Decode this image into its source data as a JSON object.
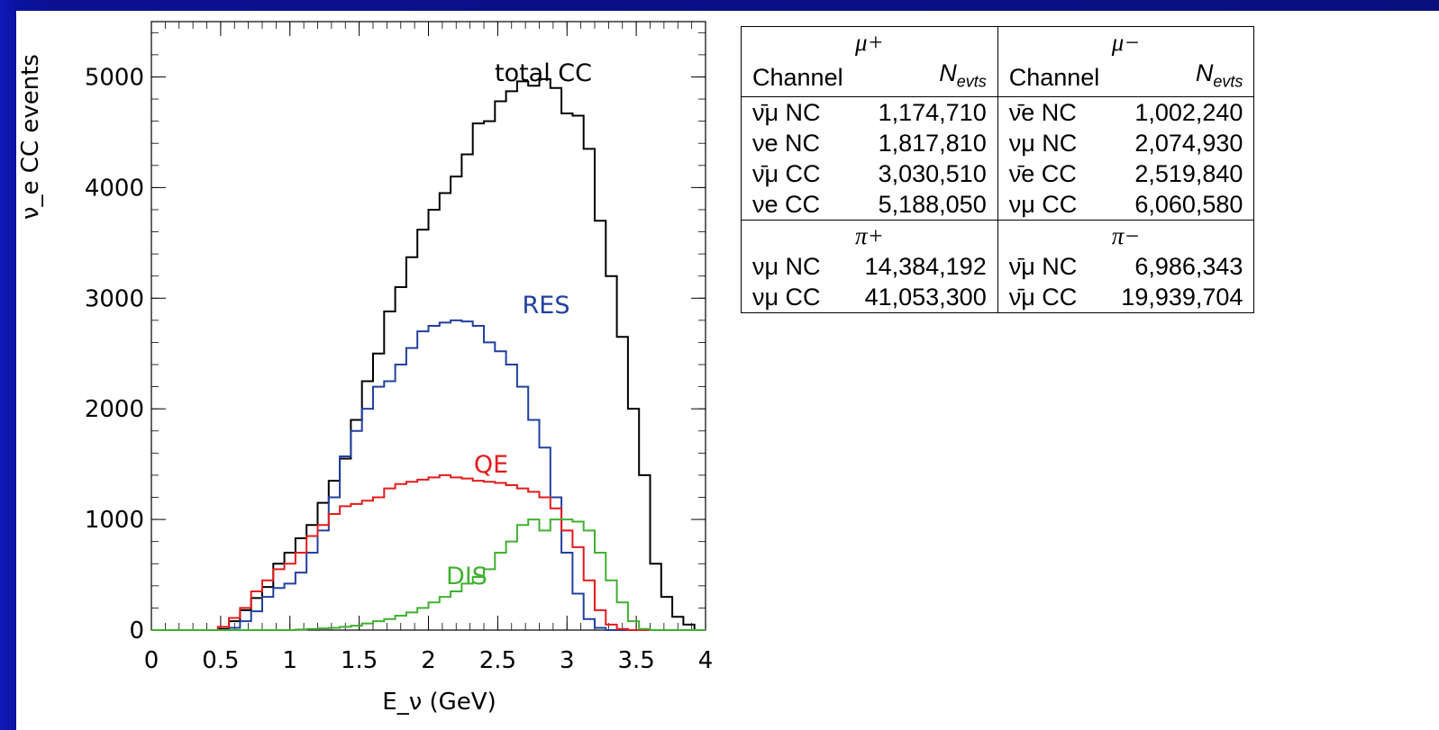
{
  "chart_data": {
    "type": "histogram",
    "xlabel": "E_ν (GeV)",
    "ylabel": "ν_e CC events",
    "xlim": [
      0,
      4
    ],
    "ylim": [
      0,
      5500
    ],
    "x_ticks": [
      "0",
      "0.5",
      "1",
      "1.5",
      "2",
      "2.5",
      "3",
      "3.5",
      "4"
    ],
    "y_ticks": [
      "0",
      "1000",
      "2000",
      "3000",
      "4000",
      "5000"
    ],
    "bin_width": 0.08,
    "series": [
      {
        "name": "total CC",
        "color": "#000000",
        "values": [
          0,
          0,
          0,
          0,
          0,
          0,
          10,
          80,
          180,
          290,
          390,
          600,
          700,
          830,
          950,
          1150,
          1350,
          1550,
          1900,
          2250,
          2500,
          2880,
          3100,
          3370,
          3620,
          3800,
          3950,
          4100,
          4300,
          4580,
          4600,
          4780,
          4870,
          4960,
          4920,
          4980,
          4900,
          4670,
          4650,
          4350,
          3700,
          3200,
          2650,
          2000,
          1400,
          600,
          300,
          120,
          50,
          0
        ]
      },
      {
        "name": "RES",
        "color": "#2040a0",
        "values": [
          0,
          0,
          0,
          0,
          0,
          0,
          0,
          20,
          80,
          170,
          300,
          380,
          420,
          520,
          700,
          900,
          1200,
          1570,
          1800,
          2000,
          2200,
          2250,
          2400,
          2550,
          2700,
          2750,
          2780,
          2800,
          2790,
          2750,
          2600,
          2520,
          2400,
          2200,
          1900,
          1650,
          1200,
          700,
          330,
          100,
          20,
          0,
          0,
          0,
          0,
          0,
          0,
          0,
          0,
          0
        ]
      },
      {
        "name": "QE",
        "color": "#e41a1c",
        "values": [
          0,
          0,
          0,
          0,
          0,
          0,
          30,
          110,
          200,
          350,
          450,
          550,
          600,
          700,
          850,
          950,
          1050,
          1120,
          1140,
          1170,
          1200,
          1280,
          1320,
          1340,
          1360,
          1380,
          1400,
          1380,
          1370,
          1350,
          1340,
          1330,
          1310,
          1280,
          1250,
          1200,
          1100,
          900,
          750,
          450,
          180,
          50,
          10,
          0,
          0,
          0,
          0,
          0,
          0,
          0
        ]
      },
      {
        "name": "DIS",
        "color": "#40b030",
        "values": [
          0,
          0,
          0,
          0,
          0,
          0,
          0,
          0,
          0,
          0,
          0,
          0,
          0,
          5,
          10,
          15,
          20,
          30,
          40,
          60,
          80,
          100,
          130,
          160,
          200,
          250,
          300,
          350,
          420,
          480,
          550,
          700,
          800,
          950,
          1000,
          900,
          1000,
          1000,
          980,
          900,
          700,
          450,
          250,
          80,
          10,
          0,
          0,
          0,
          0,
          0
        ]
      }
    ],
    "annotations": [
      {
        "text": "total CC",
        "color": "#000000"
      },
      {
        "text": "RES",
        "color": "#2040a0"
      },
      {
        "text": "QE",
        "color": "#e41a1c"
      },
      {
        "text": "DIS",
        "color": "#40b030"
      }
    ]
  },
  "table": {
    "groups_top": [
      "μ+",
      "μ−"
    ],
    "groups_bottom": [
      "π+",
      "π−"
    ],
    "col_channel": "Channel",
    "col_nevts_main": "N",
    "col_nevts_sub": "evts",
    "rows_top": [
      {
        "l_ch": "ν̄μ NC",
        "l_n": "1,174,710",
        "r_ch": "ν̄e NC",
        "r_n": "1,002,240"
      },
      {
        "l_ch": "νe NC",
        "l_n": "1,817,810",
        "r_ch": "νμ NC",
        "r_n": "2,074,930"
      },
      {
        "l_ch": "ν̄μ CC",
        "l_n": "3,030,510",
        "r_ch": "ν̄e CC",
        "r_n": "2,519,840"
      },
      {
        "l_ch": "νe CC",
        "l_n": "5,188,050",
        "r_ch": "νμ CC",
        "r_n": "6,060,580"
      }
    ],
    "rows_bottom": [
      {
        "l_ch": "νμ NC",
        "l_n": "14,384,192",
        "r_ch": "ν̄μ NC",
        "r_n": "6,986,343"
      },
      {
        "l_ch": "νμ CC",
        "l_n": "41,053,300",
        "r_ch": "ν̄μ CC",
        "r_n": "19,939,704"
      }
    ]
  }
}
